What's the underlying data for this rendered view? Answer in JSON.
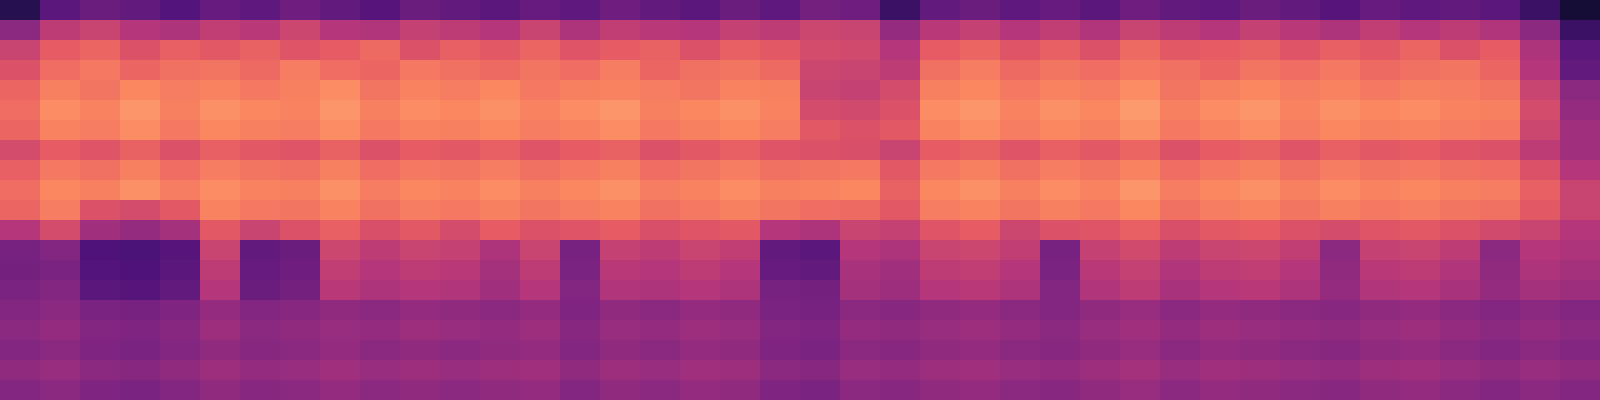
{
  "chart_data": {
    "type": "heatmap",
    "tick_labels": false,
    "zlim": [
      0,
      100
    ],
    "cells": [
      [
        15,
        28,
        32,
        30,
        26,
        31,
        29,
        33,
        30,
        27,
        32,
        30,
        28,
        31,
        29,
        33,
        30,
        28,
        32,
        29,
        34,
        33,
        20,
        30,
        32,
        29,
        31,
        28,
        33,
        30,
        29,
        32,
        30,
        27,
        31,
        29,
        30,
        28,
        20,
        10
      ],
      [
        40,
        52,
        55,
        50,
        48,
        53,
        51,
        56,
        50,
        49,
        54,
        52,
        50,
        55,
        48,
        53,
        51,
        50,
        54,
        52,
        56,
        55,
        42,
        51,
        54,
        50,
        53,
        49,
        55,
        52,
        50,
        54,
        51,
        48,
        53,
        50,
        52,
        49,
        40,
        20
      ],
      [
        55,
        63,
        66,
        60,
        64,
        62,
        65,
        61,
        63,
        67,
        60,
        64,
        62,
        66,
        61,
        63,
        65,
        60,
        64,
        62,
        58,
        57,
        50,
        63,
        66,
        61,
        64,
        60,
        67,
        62,
        63,
        65,
        61,
        64,
        62,
        66,
        60,
        63,
        48,
        28
      ],
      [
        60,
        68,
        71,
        66,
        69,
        70,
        67,
        72,
        68,
        66,
        71,
        69,
        67,
        70,
        68,
        72,
        66,
        69,
        70,
        67,
        56,
        55,
        52,
        69,
        72,
        67,
        70,
        68,
        71,
        69,
        66,
        70,
        68,
        71,
        67,
        69,
        70,
        66,
        50,
        30
      ],
      [
        66,
        73,
        70,
        75,
        72,
        74,
        71,
        73,
        76,
        70,
        74,
        72,
        75,
        71,
        73,
        74,
        72,
        70,
        74,
        73,
        55,
        54,
        58,
        73,
        75,
        71,
        74,
        72,
        76,
        70,
        73,
        75,
        72,
        74,
        71,
        73,
        72,
        70,
        55,
        40
      ],
      [
        68,
        76,
        74,
        78,
        73,
        77,
        75,
        74,
        78,
        73,
        76,
        75,
        77,
        74,
        76,
        78,
        73,
        75,
        77,
        74,
        58,
        57,
        60,
        76,
        78,
        74,
        77,
        75,
        79,
        73,
        76,
        78,
        74,
        77,
        75,
        76,
        74,
        73,
        58,
        42
      ],
      [
        66,
        74,
        72,
        76,
        71,
        75,
        73,
        72,
        76,
        71,
        74,
        73,
        75,
        72,
        74,
        76,
        71,
        73,
        75,
        72,
        62,
        60,
        62,
        74,
        76,
        72,
        75,
        73,
        77,
        71,
        74,
        76,
        72,
        75,
        73,
        74,
        72,
        71,
        56,
        45
      ],
      [
        58,
        63,
        61,
        65,
        60,
        64,
        62,
        61,
        65,
        60,
        63,
        62,
        64,
        61,
        63,
        65,
        60,
        62,
        64,
        61,
        60,
        59,
        55,
        63,
        65,
        61,
        64,
        62,
        66,
        60,
        63,
        65,
        61,
        64,
        62,
        63,
        61,
        60,
        52,
        45
      ],
      [
        64,
        71,
        69,
        73,
        68,
        72,
        70,
        69,
        73,
        68,
        71,
        70,
        72,
        69,
        71,
        73,
        68,
        70,
        72,
        69,
        70,
        71,
        62,
        71,
        73,
        69,
        72,
        70,
        74,
        68,
        71,
        73,
        69,
        72,
        70,
        71,
        69,
        68,
        60,
        50
      ],
      [
        68,
        75,
        73,
        77,
        72,
        76,
        74,
        73,
        77,
        72,
        75,
        74,
        76,
        73,
        75,
        77,
        72,
        74,
        76,
        73,
        74,
        75,
        65,
        75,
        77,
        73,
        76,
        74,
        78,
        72,
        75,
        77,
        73,
        76,
        74,
        75,
        73,
        72,
        64,
        55
      ],
      [
        66,
        72,
        60,
        58,
        62,
        74,
        71,
        70,
        74,
        69,
        72,
        71,
        73,
        70,
        72,
        74,
        69,
        71,
        73,
        70,
        68,
        67,
        62,
        72,
        74,
        70,
        73,
        71,
        75,
        69,
        72,
        74,
        70,
        73,
        71,
        72,
        70,
        69,
        62,
        55
      ],
      [
        50,
        58,
        45,
        42,
        46,
        62,
        55,
        60,
        64,
        59,
        62,
        58,
        63,
        60,
        61,
        63,
        59,
        61,
        62,
        50,
        48,
        55,
        54,
        61,
        63,
        56,
        60,
        61,
        64,
        59,
        62,
        63,
        60,
        58,
        61,
        62,
        60,
        57,
        55,
        50
      ],
      [
        35,
        38,
        25,
        24,
        27,
        55,
        30,
        32,
        56,
        52,
        55,
        54,
        48,
        55,
        35,
        54,
        52,
        55,
        53,
        30,
        28,
        50,
        48,
        55,
        56,
        53,
        35,
        54,
        57,
        52,
        55,
        56,
        53,
        40,
        54,
        55,
        52,
        40,
        50,
        48
      ],
      [
        34,
        36,
        26,
        25,
        28,
        52,
        31,
        33,
        53,
        50,
        52,
        51,
        46,
        52,
        36,
        51,
        50,
        52,
        50,
        31,
        30,
        47,
        45,
        52,
        53,
        50,
        36,
        51,
        54,
        49,
        52,
        53,
        50,
        41,
        51,
        52,
        49,
        41,
        48,
        46
      ],
      [
        36,
        38,
        28,
        27,
        30,
        50,
        32,
        34,
        51,
        48,
        50,
        49,
        45,
        50,
        38,
        49,
        48,
        50,
        48,
        35,
        34,
        46,
        44,
        50,
        51,
        48,
        38,
        49,
        52,
        47,
        50,
        51,
        48,
        42,
        49,
        50,
        47,
        42,
        46,
        44
      ],
      [
        38,
        40,
        36,
        35,
        37,
        42,
        38,
        39,
        41,
        40,
        42,
        41,
        40,
        42,
        37,
        41,
        40,
        42,
        41,
        36,
        35,
        40,
        39,
        41,
        42,
        40,
        38,
        41,
        43,
        40,
        42,
        41,
        40,
        39,
        41,
        42,
        40,
        38,
        40,
        38
      ],
      [
        40,
        42,
        38,
        37,
        39,
        44,
        40,
        41,
        43,
        42,
        44,
        43,
        42,
        44,
        39,
        43,
        42,
        44,
        43,
        38,
        37,
        42,
        41,
        43,
        44,
        42,
        40,
        43,
        45,
        42,
        44,
        43,
        42,
        41,
        43,
        44,
        42,
        40,
        42,
        40
      ],
      [
        38,
        40,
        37,
        36,
        38,
        41,
        39,
        40,
        42,
        40,
        41,
        40,
        41,
        42,
        38,
        41,
        40,
        42,
        41,
        37,
        36,
        40,
        39,
        41,
        42,
        40,
        39,
        41,
        43,
        40,
        42,
        41,
        40,
        39,
        41,
        42,
        40,
        38,
        40,
        38
      ],
      [
        41,
        43,
        40,
        39,
        41,
        44,
        42,
        43,
        45,
        43,
        44,
        43,
        44,
        45,
        41,
        44,
        43,
        45,
        44,
        40,
        39,
        43,
        42,
        44,
        45,
        43,
        42,
        44,
        46,
        43,
        45,
        44,
        43,
        42,
        44,
        45,
        43,
        41,
        43,
        41
      ],
      [
        38,
        40,
        37,
        36,
        38,
        41,
        39,
        40,
        42,
        40,
        41,
        40,
        41,
        42,
        38,
        41,
        40,
        42,
        41,
        37,
        36,
        40,
        39,
        41,
        42,
        40,
        39,
        41,
        43,
        40,
        42,
        41,
        40,
        39,
        41,
        42,
        40,
        38,
        40,
        38
      ]
    ]
  }
}
